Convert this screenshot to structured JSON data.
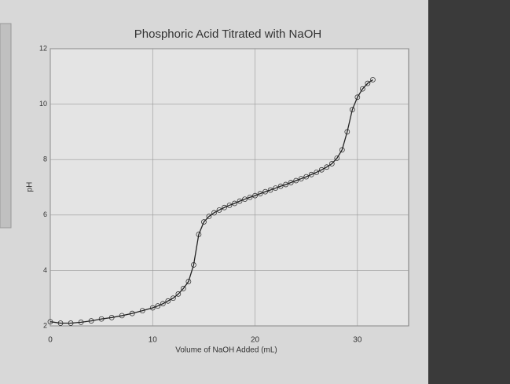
{
  "chart_data": {
    "type": "line",
    "title": "Phosphoric Acid Titrated with NaOH",
    "x_label": "Volume of NaOH Added (mL)",
    "y_label": "pH",
    "x": [
      0,
      1,
      2,
      3,
      4,
      5,
      6,
      7,
      8,
      9,
      10,
      10.5,
      11,
      11.5,
      12,
      12.5,
      13,
      13.5,
      14,
      14.5,
      15,
      15.5,
      16,
      16.5,
      17,
      17.5,
      18,
      18.5,
      19,
      19.5,
      20,
      20.5,
      21,
      21.5,
      22,
      22.5,
      23,
      23.5,
      24,
      24.5,
      25,
      25.5,
      26,
      26.5,
      27,
      27.5,
      28,
      28.5,
      29,
      29.5,
      30,
      30.5,
      31,
      31.5
    ],
    "series": [
      {
        "name": "pH",
        "color": "#222222",
        "values": [
          2.15,
          2.1,
          2.1,
          2.13,
          2.18,
          2.25,
          2.3,
          2.37,
          2.45,
          2.55,
          2.65,
          2.72,
          2.8,
          2.9,
          3.0,
          3.15,
          3.35,
          3.6,
          4.2,
          5.3,
          5.75,
          5.95,
          6.08,
          6.18,
          6.27,
          6.35,
          6.42,
          6.5,
          6.57,
          6.64,
          6.7,
          6.77,
          6.84,
          6.9,
          6.97,
          7.04,
          7.1,
          7.17,
          7.24,
          7.31,
          7.38,
          7.46,
          7.54,
          7.63,
          7.73,
          7.85,
          8.05,
          8.35,
          9.0,
          9.8,
          10.25,
          10.55,
          10.75,
          10.88
        ]
      }
    ],
    "xlim": [
      0,
      35
    ],
    "ylim": [
      2,
      12
    ],
    "xticks": [
      0,
      10,
      20,
      30
    ],
    "yticks": [
      2,
      4,
      6,
      8,
      10,
      12
    ],
    "grid": true
  }
}
